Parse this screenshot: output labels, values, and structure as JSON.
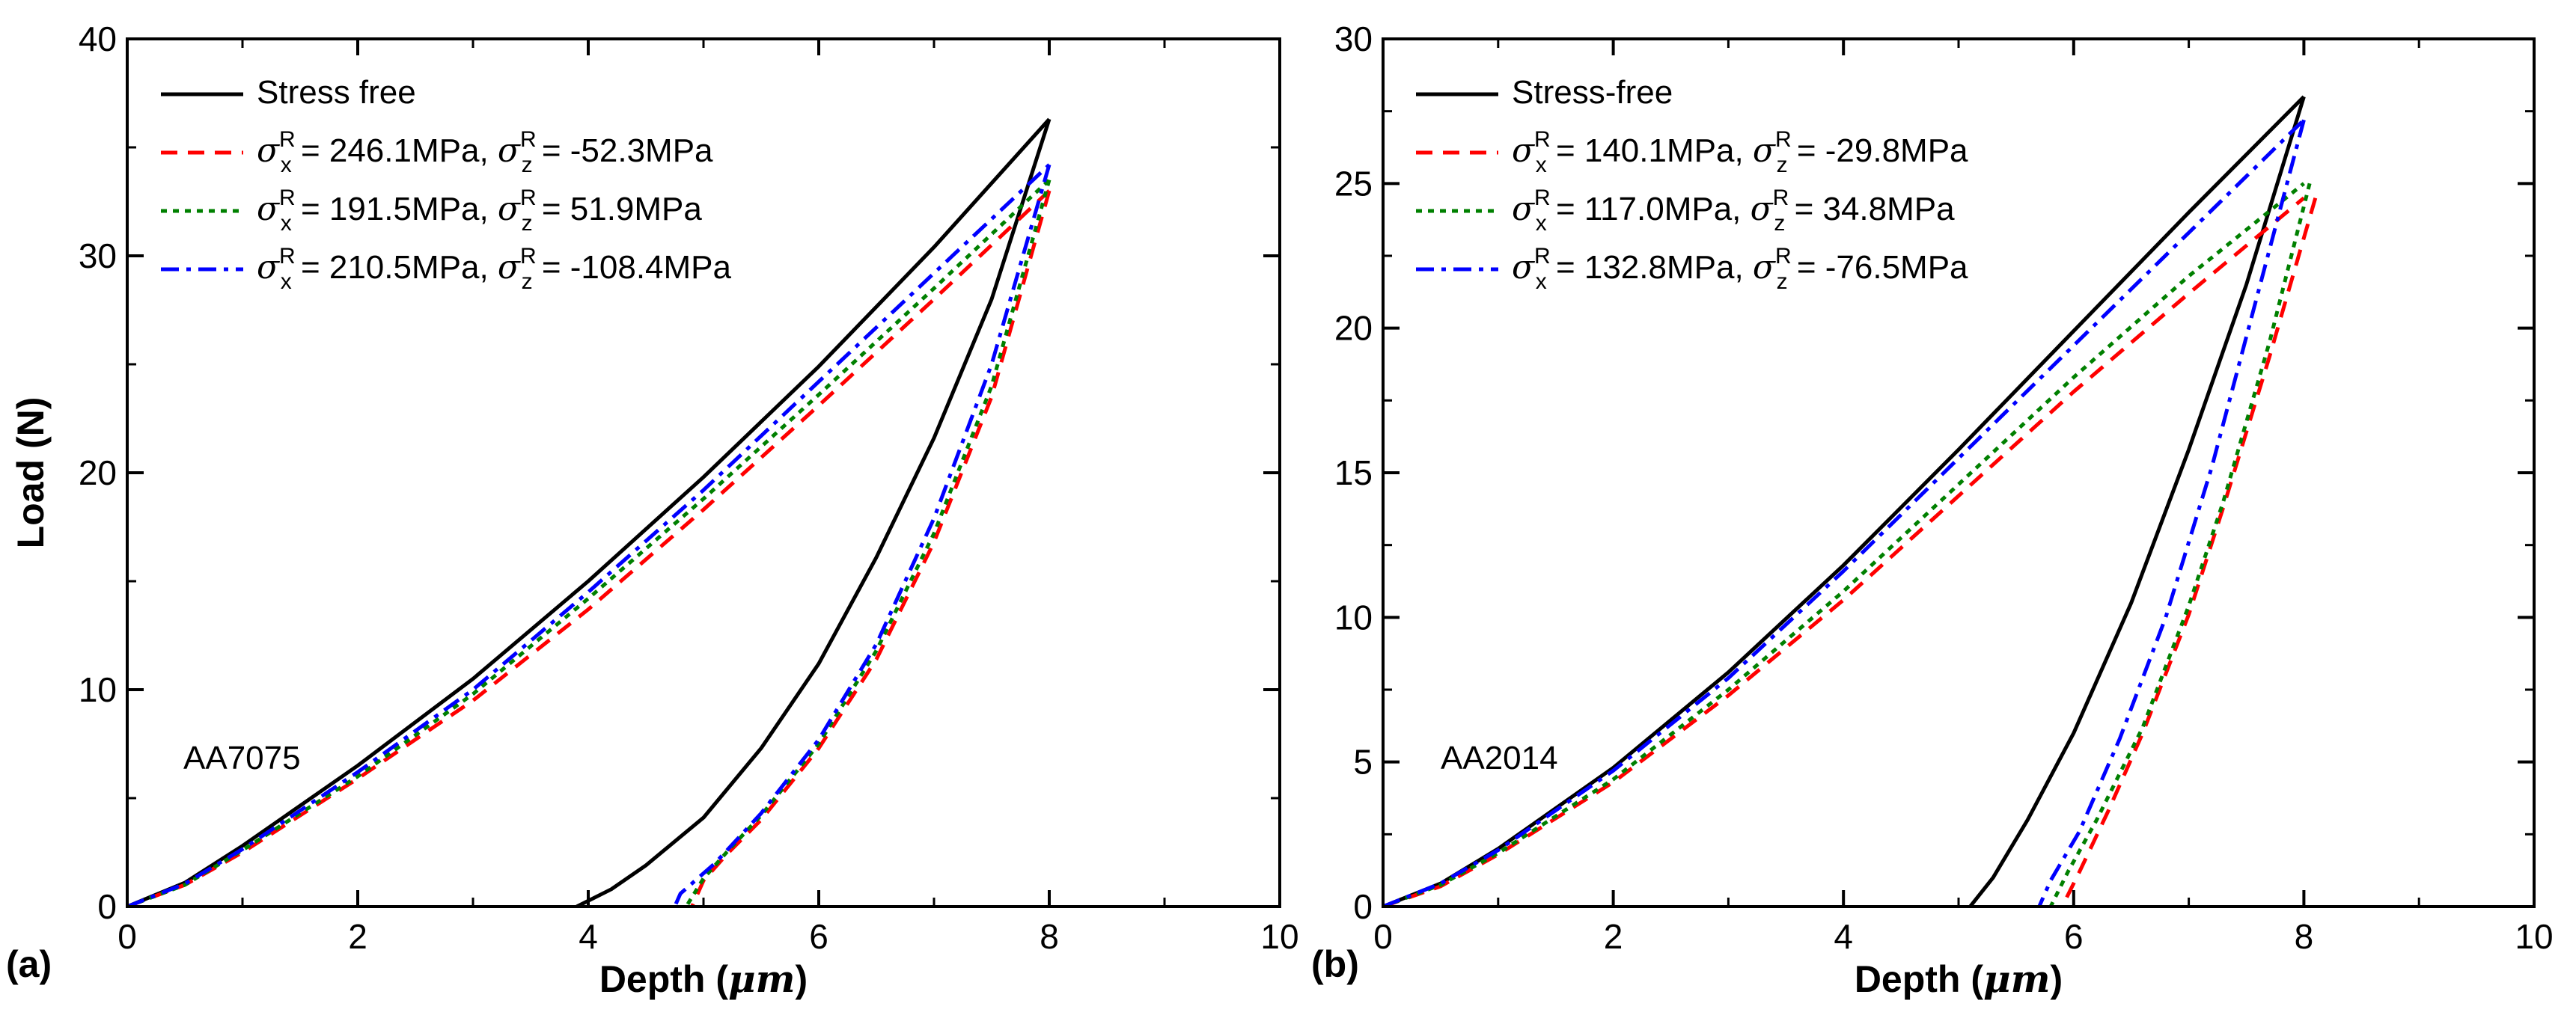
{
  "chart_data": [
    {
      "type": "line",
      "panel_label": "(a)",
      "annotation": "AA7075",
      "xlabel_main": "Depth (",
      "xlabel_unit": "μm",
      "xlabel_close": ")",
      "ylabel": "Load (N)",
      "xlim": [
        0,
        10
      ],
      "ylim": [
        0,
        40
      ],
      "xticks": [
        "0",
        "2",
        "4",
        "6",
        "8",
        "10"
      ],
      "yticks": [
        "0",
        "10",
        "20",
        "30",
        "40"
      ],
      "legend_position": "top-left",
      "series": [
        {
          "name": "Stress free",
          "legend": {
            "sx": "",
            "sz": "",
            "plain": "Stress free"
          },
          "color": "#000000",
          "dash": "solid",
          "loading": [
            [
              0,
              0
            ],
            [
              0.5,
              1.1
            ],
            [
              1,
              2.8
            ],
            [
              2,
              6.5
            ],
            [
              3,
              10.5
            ],
            [
              4,
              15.0
            ],
            [
              5,
              19.8
            ],
            [
              6,
              24.9
            ],
            [
              7,
              30.4
            ],
            [
              8,
              36.3
            ]
          ],
          "unloading": [
            [
              8,
              36.3
            ],
            [
              7.5,
              28.0
            ],
            [
              7,
              21.6
            ],
            [
              6.5,
              16.1
            ],
            [
              6,
              11.2
            ],
            [
              5.5,
              7.3
            ],
            [
              5,
              4.1
            ],
            [
              4.5,
              1.9
            ],
            [
              4.2,
              0.8
            ],
            [
              3.9,
              0
            ]
          ]
        },
        {
          "name": "sigma_x 246.1MPa, sigma_z -52.3MPa",
          "legend": {
            "sx": "246.1MPa",
            "sz": "-52.3MPa",
            "plain": ""
          },
          "color": "#ff0000",
          "dash": "dashed",
          "loading": [
            [
              0,
              0
            ],
            [
              0.5,
              1.0
            ],
            [
              1,
              2.5
            ],
            [
              2,
              5.9
            ],
            [
              3,
              9.5
            ],
            [
              4,
              13.7
            ],
            [
              5,
              18.3
            ],
            [
              6,
              23.1
            ],
            [
              7,
              28.0
            ],
            [
              8,
              33.0
            ]
          ],
          "unloading": [
            [
              8,
              33.0
            ],
            [
              7.5,
              23.5
            ],
            [
              7,
              16.8
            ],
            [
              6.5,
              11.4
            ],
            [
              6,
              7.3
            ],
            [
              5.5,
              4.0
            ],
            [
              5.2,
              2.4
            ],
            [
              5,
              1.2
            ],
            [
              4.9,
              0
            ]
          ]
        },
        {
          "name": "sigma_x 191.5MPa, sigma_z 51.9MPa",
          "legend": {
            "sx": "191.5MPa",
            "sz": "51.9MPa",
            "plain": ""
          },
          "color": "#008000",
          "dash": "dotted",
          "loading": [
            [
              0,
              0
            ],
            [
              0.5,
              1.0
            ],
            [
              1,
              2.6
            ],
            [
              2,
              6.0
            ],
            [
              3,
              9.8
            ],
            [
              4,
              14.2
            ],
            [
              5,
              18.8
            ],
            [
              6,
              23.6
            ],
            [
              7,
              28.5
            ],
            [
              8,
              33.5
            ]
          ],
          "unloading": [
            [
              8,
              33.5
            ],
            [
              7.5,
              24.0
            ],
            [
              7,
              17.2
            ],
            [
              6.5,
              11.8
            ],
            [
              6,
              7.5
            ],
            [
              5.5,
              4.2
            ],
            [
              5.2,
              2.5
            ],
            [
              5,
              1.3
            ],
            [
              4.85,
              0
            ]
          ]
        },
        {
          "name": "sigma_x 210.5MPa, sigma_z -108.4MPa",
          "legend": {
            "sx": "210.5MPa",
            "sz": "-108.4MPa",
            "plain": ""
          },
          "color": "#0000ff",
          "dash": "dashdot",
          "loading": [
            [
              0,
              0
            ],
            [
              0.5,
              1.05
            ],
            [
              1,
              2.65
            ],
            [
              2,
              6.2
            ],
            [
              3,
              10.0
            ],
            [
              4,
              14.5
            ],
            [
              5,
              19.2
            ],
            [
              6,
              24.2
            ],
            [
              7,
              29.2
            ],
            [
              8,
              34.2
            ]
          ],
          "unloading": [
            [
              8,
              34.2
            ],
            [
              7.5,
              25.0
            ],
            [
              7,
              17.9
            ],
            [
              6.5,
              12.1
            ],
            [
              6,
              7.7
            ],
            [
              5.5,
              4.3
            ],
            [
              5.1,
              2.0
            ],
            [
              4.8,
              0.6
            ],
            [
              4.75,
              0
            ]
          ]
        }
      ]
    },
    {
      "type": "line",
      "panel_label": "(b)",
      "annotation": "AA2014",
      "xlabel_main": "Depth (",
      "xlabel_unit": "μm",
      "xlabel_close": ")",
      "ylabel": "",
      "xlim": [
        0,
        10
      ],
      "ylim": [
        0,
        30
      ],
      "xticks": [
        "0",
        "2",
        "4",
        "6",
        "8",
        "10"
      ],
      "yticks": [
        "0",
        "5",
        "10",
        "15",
        "20",
        "25",
        "30"
      ],
      "legend_position": "top-left",
      "series": [
        {
          "name": "Stress-free",
          "legend": {
            "sx": "",
            "sz": "",
            "plain": "Stress-free"
          },
          "color": "#000000",
          "dash": "solid",
          "loading": [
            [
              0,
              0
            ],
            [
              0.5,
              0.8
            ],
            [
              1,
              2.0
            ],
            [
              2,
              4.8
            ],
            [
              3,
              8.1
            ],
            [
              4,
              11.8
            ],
            [
              5,
              15.8
            ],
            [
              6,
              19.9
            ],
            [
              7,
              24.0
            ],
            [
              8,
              28.0
            ]
          ],
          "unloading": [
            [
              8,
              28.0
            ],
            [
              7.5,
              21.5
            ],
            [
              7,
              15.8
            ],
            [
              6.5,
              10.5
            ],
            [
              6,
              6.0
            ],
            [
              5.6,
              3.0
            ],
            [
              5.3,
              1.0
            ],
            [
              5.1,
              0
            ]
          ]
        },
        {
          "name": "sigma_x 140.1MPa, sigma_z -29.8MPa",
          "legend": {
            "sx": "140.1MPa",
            "sz": "-29.8MPa",
            "plain": ""
          },
          "color": "#ff0000",
          "dash": "dashed",
          "loading": [
            [
              0,
              0
            ],
            [
              0.5,
              0.7
            ],
            [
              1,
              1.8
            ],
            [
              2,
              4.3
            ],
            [
              3,
              7.3
            ],
            [
              4,
              10.6
            ],
            [
              5,
              14.2
            ],
            [
              6,
              17.8
            ],
            [
              7,
              21.2
            ],
            [
              8,
              24.5
            ]
          ],
          "unloading": [
            [
              8.1,
              24.5
            ],
            [
              7.7,
              19.0
            ],
            [
              7.3,
              13.8
            ],
            [
              7,
              10.1
            ],
            [
              6.6,
              6.0
            ],
            [
              6.3,
              3.3
            ],
            [
              6.05,
              1.2
            ],
            [
              5.9,
              0
            ]
          ]
        },
        {
          "name": "sigma_x 117.0MPa, sigma_z 34.8MPa",
          "legend": {
            "sx": "117.0MPa",
            "sz": "34.8MPa",
            "plain": ""
          },
          "color": "#008000",
          "dash": "dotted",
          "loading": [
            [
              0,
              0
            ],
            [
              0.5,
              0.75
            ],
            [
              1,
              1.85
            ],
            [
              2,
              4.4
            ],
            [
              3,
              7.5
            ],
            [
              4,
              10.9
            ],
            [
              5,
              14.6
            ],
            [
              6,
              18.3
            ],
            [
              7,
              21.8
            ],
            [
              8,
              25.0
            ]
          ],
          "unloading": [
            [
              8.05,
              25.0
            ],
            [
              7.7,
              19.5
            ],
            [
              7.3,
              14.0
            ],
            [
              7,
              10.4
            ],
            [
              6.6,
              6.2
            ],
            [
              6.2,
              3.0
            ],
            [
              5.95,
              1.2
            ],
            [
              5.8,
              0
            ]
          ]
        },
        {
          "name": "sigma_x 132.8MPa, sigma_z -76.5MPa",
          "legend": {
            "sx": "132.8MPa",
            "sz": "-76.5MPa",
            "plain": ""
          },
          "color": "#0000ff",
          "dash": "dashdot",
          "loading": [
            [
              0,
              0
            ],
            [
              0.5,
              0.8
            ],
            [
              1,
              1.95
            ],
            [
              2,
              4.7
            ],
            [
              3,
              7.9
            ],
            [
              4,
              11.6
            ],
            [
              5,
              15.5
            ],
            [
              6,
              19.4
            ],
            [
              7,
              23.3
            ],
            [
              8,
              27.2
            ]
          ],
          "unloading": [
            [
              8,
              27.2
            ],
            [
              7.6,
              21.2
            ],
            [
              7.2,
              15.2
            ],
            [
              6.8,
              10.0
            ],
            [
              6.4,
              5.8
            ],
            [
              6.05,
              2.6
            ],
            [
              5.8,
              0.9
            ],
            [
              5.7,
              0
            ]
          ]
        }
      ]
    }
  ]
}
